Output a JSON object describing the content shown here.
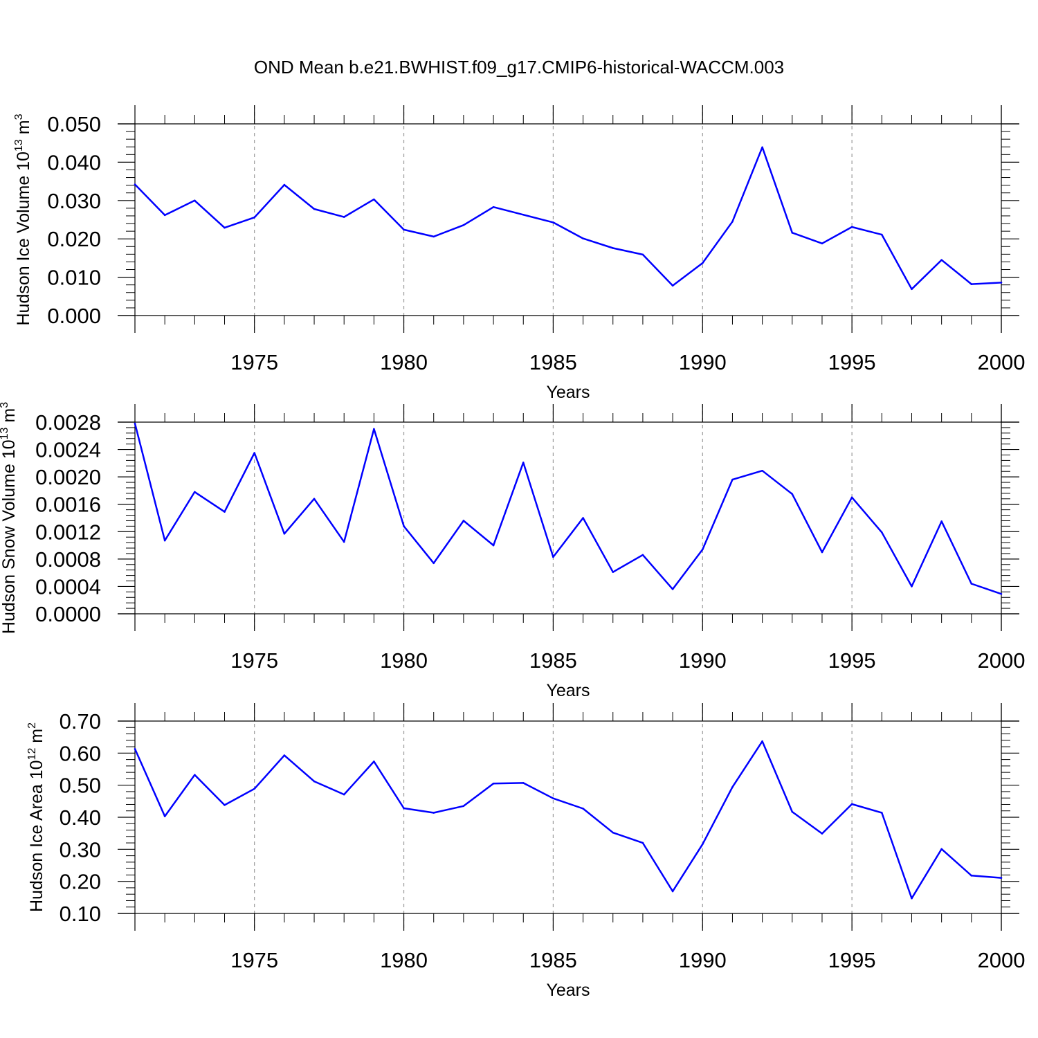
{
  "title": "OND Mean b.e21.BWHIST.f09_g17.CMIP6-historical-WACCM.003",
  "colors": {
    "line": "#0000ff",
    "axis": "#000000",
    "grid": "#999999"
  },
  "chart_data": [
    {
      "type": "line",
      "ylabel": {
        "main": "Hudson Ice Volume 10",
        "sup": "13",
        "unit": " m",
        "unit_sup": "3"
      },
      "xlabel": "Years",
      "xlim": [
        1971,
        2000
      ],
      "ylim": [
        0.0,
        0.05
      ],
      "yticks": [
        "0.000",
        "0.010",
        "0.020",
        "0.030",
        "0.040",
        "0.050"
      ],
      "ytick_values": [
        0.0,
        0.01,
        0.02,
        0.03,
        0.04,
        0.05
      ],
      "xticks": [
        "1975",
        "1980",
        "1985",
        "1990",
        "1995",
        "2000"
      ],
      "xtick_values": [
        1975,
        1980,
        1985,
        1990,
        1995,
        2000
      ],
      "grid": "vertical dashed at major x ticks",
      "x": [
        1971,
        1972,
        1973,
        1974,
        1975,
        1976,
        1977,
        1978,
        1979,
        1980,
        1981,
        1982,
        1983,
        1984,
        1985,
        1986,
        1987,
        1988,
        1989,
        1990,
        1991,
        1992,
        1993,
        1994,
        1995,
        1996,
        1997,
        1998,
        1999,
        2000
      ],
      "values": [
        0.0342,
        0.0262,
        0.03,
        0.0229,
        0.0256,
        0.0341,
        0.0278,
        0.0257,
        0.0303,
        0.0224,
        0.0206,
        0.0236,
        0.0283,
        0.0263,
        0.0243,
        0.0201,
        0.0176,
        0.0159,
        0.0078,
        0.0137,
        0.0245,
        0.0439,
        0.0216,
        0.0188,
        0.0231,
        0.0211,
        0.0069,
        0.0145,
        0.0082,
        0.0086
      ]
    },
    {
      "type": "line",
      "ylabel": {
        "main": "Hudson Snow Volume 10",
        "sup": "13",
        "unit": " m",
        "unit_sup": "3"
      },
      "xlabel": "Years",
      "xlim": [
        1971,
        2000
      ],
      "ylim": [
        0.0,
        0.0028
      ],
      "yticks": [
        "0.0000",
        "0.0004",
        "0.0008",
        "0.0012",
        "0.0016",
        "0.0020",
        "0.0024",
        "0.0028"
      ],
      "ytick_values": [
        0.0,
        0.0004,
        0.0008,
        0.0012,
        0.0016,
        0.002,
        0.0024,
        0.0028
      ],
      "xticks": [
        "1975",
        "1980",
        "1985",
        "1990",
        "1995",
        "2000"
      ],
      "xtick_values": [
        1975,
        1980,
        1985,
        1990,
        1995,
        2000
      ],
      "grid": "vertical dashed at major x ticks",
      "x": [
        1971,
        1972,
        1973,
        1974,
        1975,
        1976,
        1977,
        1978,
        1979,
        1980,
        1981,
        1982,
        1983,
        1984,
        1985,
        1986,
        1987,
        1988,
        1989,
        1990,
        1991,
        1992,
        1993,
        1994,
        1995,
        1996,
        1997,
        1998,
        1999,
        2000
      ],
      "values": [
        0.00278,
        0.00107,
        0.00178,
        0.00149,
        0.00235,
        0.00117,
        0.00168,
        0.00105,
        0.0027,
        0.00128,
        0.00074,
        0.00136,
        0.001,
        0.00221,
        0.00083,
        0.0014,
        0.00061,
        0.00086,
        0.00036,
        0.00094,
        0.00196,
        0.00209,
        0.00175,
        0.0009,
        0.0017,
        0.00119,
        0.0004,
        0.00135,
        0.00044,
        0.00029
      ]
    },
    {
      "type": "line",
      "ylabel": {
        "main": "Hudson Ice Area 10",
        "sup": "12",
        "unit": " m",
        "unit_sup": "2"
      },
      "xlabel": "Years",
      "xlim": [
        1971,
        2000
      ],
      "ylim": [
        0.1,
        0.7
      ],
      "yticks": [
        "0.10",
        "0.20",
        "0.30",
        "0.40",
        "0.50",
        "0.60",
        "0.70"
      ],
      "ytick_values": [
        0.1,
        0.2,
        0.3,
        0.4,
        0.5,
        0.6,
        0.7
      ],
      "xticks": [
        "1975",
        "1980",
        "1985",
        "1990",
        "1995",
        "2000"
      ],
      "xtick_values": [
        1975,
        1980,
        1985,
        1990,
        1995,
        2000
      ],
      "grid": "vertical dashed at major x ticks",
      "x": [
        1971,
        1972,
        1973,
        1974,
        1975,
        1976,
        1977,
        1978,
        1979,
        1980,
        1981,
        1982,
        1983,
        1984,
        1985,
        1986,
        1987,
        1988,
        1989,
        1990,
        1991,
        1992,
        1993,
        1994,
        1995,
        1996,
        1997,
        1998,
        1999,
        2000
      ],
      "values": [
        0.613,
        0.403,
        0.532,
        0.438,
        0.489,
        0.593,
        0.512,
        0.471,
        0.574,
        0.428,
        0.414,
        0.435,
        0.505,
        0.507,
        0.459,
        0.427,
        0.352,
        0.32,
        0.169,
        0.316,
        0.494,
        0.637,
        0.417,
        0.349,
        0.441,
        0.414,
        0.147,
        0.301,
        0.218,
        0.211
      ]
    }
  ]
}
